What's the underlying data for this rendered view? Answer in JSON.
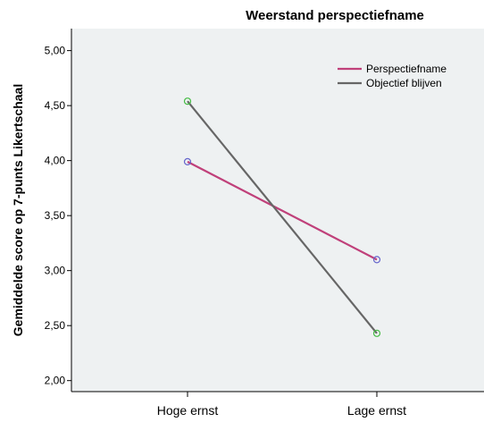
{
  "chart_data": {
    "type": "line",
    "title": "Weerstand perspectiefname",
    "xlabel": "",
    "ylabel": "Gemiddelde score op 7-punts Likertschaal",
    "categories": [
      "Hoge ernst",
      "Lage ernst"
    ],
    "ylim": [
      1.9,
      5.2
    ],
    "yticks": [
      2.0,
      2.5,
      3.0,
      3.5,
      4.0,
      4.5,
      5.0
    ],
    "ytick_labels": [
      "2,00",
      "2,50",
      "3,00",
      "3,50",
      "4,00",
      "4,50",
      "5,00"
    ],
    "grid": false,
    "legend_position": "top-right",
    "plot_background": "#eef1f2",
    "series": [
      {
        "name": "Perspectiefname",
        "values": [
          3.99,
          3.1
        ],
        "color": "#c0407a",
        "marker_color": "#6666cc"
      },
      {
        "name": "Objectief blijven",
        "values": [
          4.54,
          2.43
        ],
        "color": "#666666",
        "marker_color": "#44bb44"
      }
    ]
  }
}
